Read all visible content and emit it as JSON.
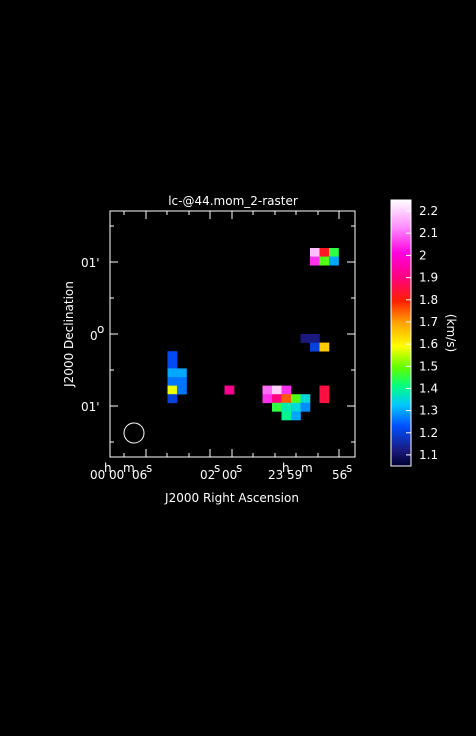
{
  "chart_data": {
    "type": "heatmap",
    "title": "lc-@44.mom_2-raster",
    "xlabel": "J2000 Right Ascension",
    "ylabel": "J2000 Declination",
    "x_tick_labels": [
      {
        "pre": "00",
        "h": "h",
        "mid": "00",
        "m": "m",
        "sec": "06",
        "s": "s"
      },
      {
        "pre": "",
        "h": "",
        "mid": "",
        "m": "",
        "sec": "02",
        "s": "s"
      },
      {
        "pre": "",
        "h": "",
        "mid": "",
        "m": "",
        "sec": "00",
        "s": "s"
      },
      {
        "pre": "23",
        "h": "h",
        "mid": "59",
        "m": "m",
        "sec": "56",
        "s": "s"
      }
    ],
    "y_tick_labels": [
      {
        "text": "01'",
        "sign": ""
      },
      {
        "text": "0",
        "sign": "o"
      },
      {
        "text": "01'",
        "sign": ""
      }
    ],
    "colorbar": {
      "label": "(km/s)",
      "range": [
        1.05,
        2.25
      ],
      "ticks": [
        "2.2",
        "2.1",
        "2",
        "1.9",
        "1.8",
        "1.7",
        "1.6",
        "1.5",
        "1.4",
        "1.3",
        "1.2",
        "1.1"
      ],
      "tick_values": [
        2.2,
        2.1,
        2.0,
        1.9,
        1.8,
        1.7,
        1.6,
        1.5,
        1.4,
        1.3,
        1.2,
        1.1
      ]
    },
    "grid": false,
    "beam": "circle",
    "pixels": [
      {
        "col": 0,
        "row": 0,
        "value": 2.18
      },
      {
        "col": 1,
        "row": 0,
        "value": 1.82
      },
      {
        "col": 2,
        "row": 0,
        "value": 1.45
      },
      {
        "col": 0,
        "row": 1,
        "value": 2.05
      },
      {
        "col": 1,
        "row": 1,
        "value": 1.48
      },
      {
        "col": 2,
        "row": 1,
        "value": 1.3
      },
      {
        "col": -1,
        "row": 10,
        "value": 1.12
      },
      {
        "col": 0,
        "row": 10,
        "value": 1.12
      },
      {
        "col": 0,
        "row": 11,
        "value": 1.2
      },
      {
        "col": 1,
        "row": 11,
        "value": 1.65
      },
      {
        "col": -15,
        "row": 12,
        "value": 1.22
      },
      {
        "col": -15,
        "row": 13,
        "value": 1.22
      },
      {
        "col": -15,
        "row": 14,
        "value": 1.3
      },
      {
        "col": -14,
        "row": 14,
        "value": 1.3
      },
      {
        "col": -15,
        "row": 15,
        "value": 1.26
      },
      {
        "col": -14,
        "row": 15,
        "value": 1.26
      },
      {
        "col": -15,
        "row": 16,
        "value": 1.58
      },
      {
        "col": -14,
        "row": 16,
        "value": 1.26
      },
      {
        "col": -15,
        "row": 17,
        "value": 1.2
      },
      {
        "col": -9,
        "row": 16,
        "value": 1.92
      },
      {
        "col": -5,
        "row": 16,
        "value": 2.1
      },
      {
        "col": -4,
        "row": 16,
        "value": 2.2
      },
      {
        "col": -3,
        "row": 16,
        "value": 2.05
      },
      {
        "col": -5,
        "row": 17,
        "value": 2.05
      },
      {
        "col": -4,
        "row": 17,
        "value": 1.9
      },
      {
        "col": -3,
        "row": 17,
        "value": 1.75
      },
      {
        "col": -2,
        "row": 17,
        "value": 1.48
      },
      {
        "col": -1,
        "row": 17,
        "value": 1.35
      },
      {
        "col": -4,
        "row": 18,
        "value": 1.45
      },
      {
        "col": -3,
        "row": 18,
        "value": 1.38
      },
      {
        "col": -2,
        "row": 18,
        "value": 1.35
      },
      {
        "col": -1,
        "row": 18,
        "value": 1.28
      },
      {
        "col": -3,
        "row": 19,
        "value": 1.4
      },
      {
        "col": -2,
        "row": 19,
        "value": 1.3
      },
      {
        "col": 1,
        "row": 16,
        "value": 1.85
      },
      {
        "col": 1,
        "row": 17,
        "value": 1.85
      }
    ]
  }
}
